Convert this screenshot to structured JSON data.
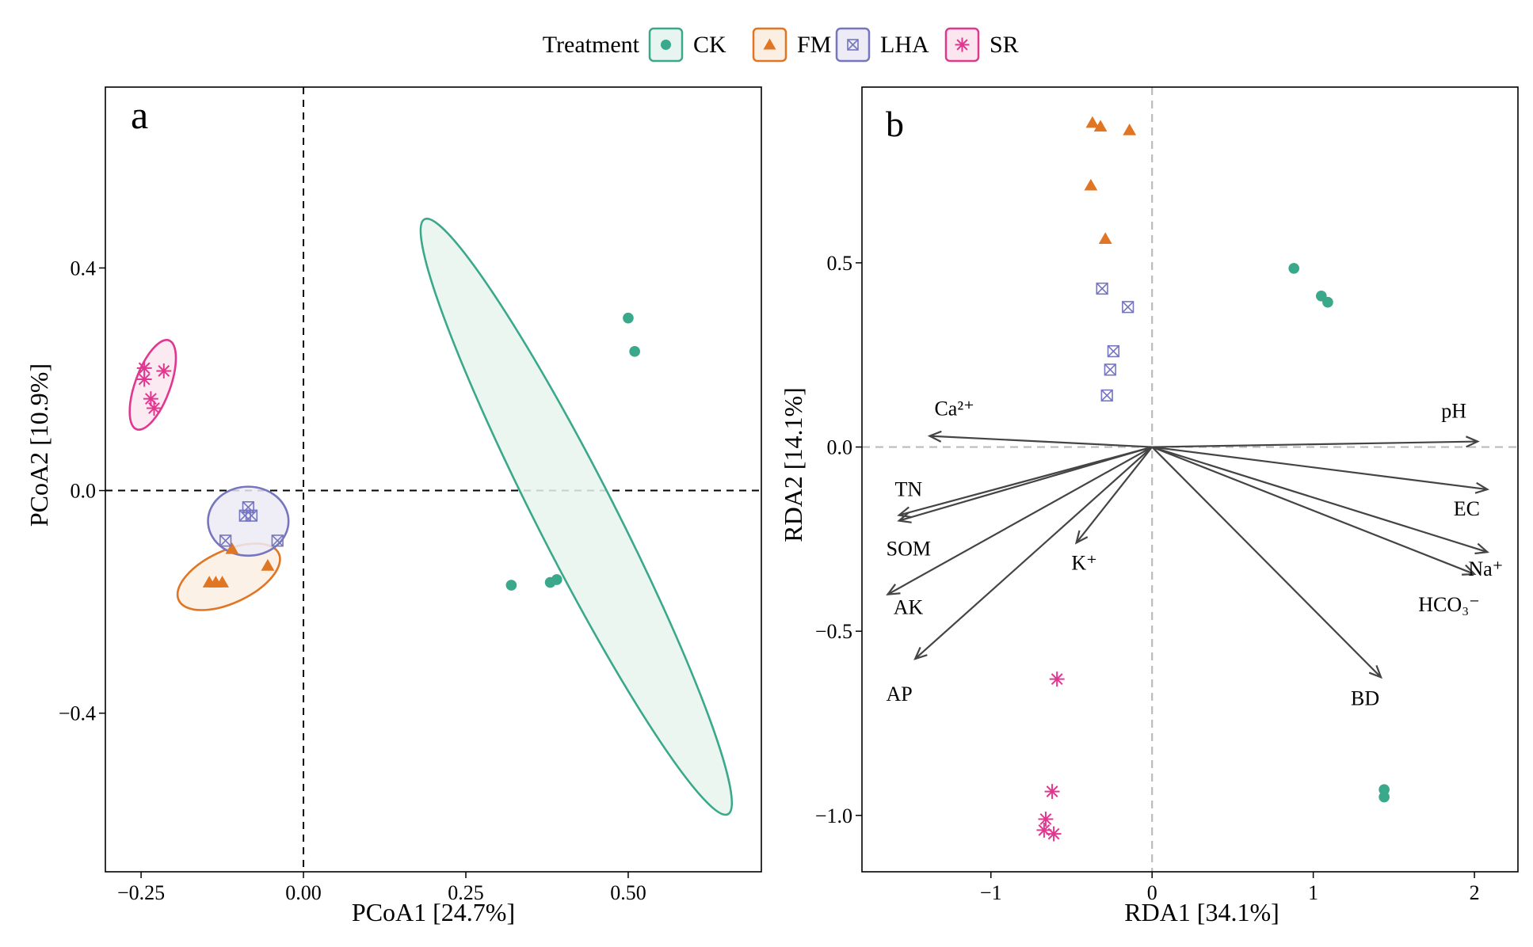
{
  "legend": {
    "title": "Treatment",
    "items": [
      {
        "key": "CK",
        "label": "CK",
        "color": "#3aa88a",
        "fill": "#e7f4ef",
        "shape": "circle"
      },
      {
        "key": "FM",
        "label": "FM",
        "color": "#e07524",
        "fill": "#fbeee2",
        "shape": "triangle"
      },
      {
        "key": "LHA",
        "label": "LHA",
        "color": "#7676bf",
        "fill": "#ecebf6",
        "shape": "boxed-x"
      },
      {
        "key": "SR",
        "label": "SR",
        "color": "#e0378f",
        "fill": "#fbe6f0",
        "shape": "asterisk"
      }
    ]
  },
  "chart_data": [
    {
      "panel": "a",
      "type": "scatter",
      "xlabel": "PCoA1 [24.7%]",
      "ylabel": "PCoA2 [10.9%]",
      "xlim": [
        -0.305,
        0.705
      ],
      "ylim": [
        -0.685,
        0.725
      ],
      "xticks": [
        {
          "v": -0.25,
          "label": "−0.25"
        },
        {
          "v": 0.0,
          "label": "0.00"
        },
        {
          "v": 0.25,
          "label": "0.25"
        },
        {
          "v": 0.5,
          "label": "0.50"
        }
      ],
      "yticks": [
        {
          "v": 0.4,
          "label": "0.4"
        },
        {
          "v": 0.0,
          "label": "0.0"
        },
        {
          "v": -0.4,
          "label": "−0.4"
        }
      ],
      "reference_lines": {
        "x": 0,
        "y": 0,
        "style": "dashed black"
      },
      "series": [
        {
          "name": "CK",
          "points": [
            [
              0.5,
              0.31
            ],
            [
              0.51,
              0.25
            ],
            [
              0.32,
              -0.17
            ],
            [
              0.38,
              -0.165
            ],
            [
              0.39,
              -0.16
            ]
          ]
        },
        {
          "name": "FM",
          "points": [
            [
              -0.145,
              -0.165
            ],
            [
              -0.135,
              -0.165
            ],
            [
              -0.125,
              -0.165
            ],
            [
              -0.11,
              -0.105
            ],
            [
              -0.055,
              -0.135
            ]
          ]
        },
        {
          "name": "LHA",
          "points": [
            [
              -0.12,
              -0.09
            ],
            [
              -0.09,
              -0.045
            ],
            [
              -0.085,
              -0.03
            ],
            [
              -0.08,
              -0.045
            ],
            [
              -0.04,
              -0.09
            ]
          ]
        },
        {
          "name": "SR",
          "points": [
            [
              -0.245,
              0.22
            ],
            [
              -0.245,
              0.2
            ],
            [
              -0.215,
              0.215
            ],
            [
              -0.235,
              0.165
            ],
            [
              -0.23,
              0.148
            ]
          ]
        }
      ],
      "ellipses": [
        {
          "group": "CK",
          "center": [
            0.42,
            -0.047
          ],
          "semi_axes": [
            0.06,
            0.6
          ],
          "rotation_deg": -27
        },
        {
          "group": "FM",
          "center": [
            -0.115,
            -0.155
          ],
          "semi_axes": [
            0.085,
            0.047
          ],
          "rotation_deg": -25
        },
        {
          "group": "LHA",
          "center": [
            -0.085,
            -0.055
          ],
          "semi_axes": [
            0.062,
            0.062
          ],
          "rotation_deg": 0
        },
        {
          "group": "SR",
          "center": [
            -0.232,
            0.19
          ],
          "semi_axes": [
            0.027,
            0.085
          ],
          "rotation_deg": 20
        }
      ]
    },
    {
      "panel": "b",
      "type": "scatter",
      "xlabel": "RDA1 [34.1%]",
      "ylabel": "RDA2 [14.1%]",
      "xlim": [
        -1.8,
        2.27
      ],
      "ylim": [
        -1.153,
        0.977
      ],
      "xticks": [
        {
          "v": -1,
          "label": "−1"
        },
        {
          "v": 0,
          "label": "0"
        },
        {
          "v": 1,
          "label": "1"
        },
        {
          "v": 2,
          "label": "2"
        }
      ],
      "yticks": [
        {
          "v": 0.5,
          "label": "0.5"
        },
        {
          "v": 0.0,
          "label": "0.0"
        },
        {
          "v": -0.5,
          "label": "−0.5"
        },
        {
          "v": -1.0,
          "label": "−1.0"
        }
      ],
      "reference_lines": {
        "x": 0,
        "y": 0,
        "style": "dashed grey"
      },
      "series": [
        {
          "name": "CK",
          "points": [
            [
              0.88,
              0.485
            ],
            [
              1.05,
              0.41
            ],
            [
              1.09,
              0.393
            ],
            [
              1.44,
              -0.93
            ],
            [
              1.44,
              -0.95
            ]
          ]
        },
        {
          "name": "FM",
          "points": [
            [
              -0.37,
              0.88
            ],
            [
              -0.32,
              0.87
            ],
            [
              -0.14,
              0.86
            ],
            [
              -0.38,
              0.71
            ],
            [
              -0.29,
              0.565
            ]
          ]
        },
        {
          "name": "LHA",
          "points": [
            [
              -0.31,
              0.43
            ],
            [
              -0.15,
              0.38
            ],
            [
              -0.24,
              0.26
            ],
            [
              -0.26,
              0.21
            ],
            [
              -0.28,
              0.14
            ]
          ]
        },
        {
          "name": "SR",
          "points": [
            [
              -0.59,
              -0.63
            ],
            [
              -0.62,
              -0.935
            ],
            [
              -0.66,
              -1.01
            ],
            [
              -0.67,
              -1.04
            ],
            [
              -0.61,
              -1.05
            ]
          ]
        }
      ],
      "arrows": [
        {
          "name": "Ca2+",
          "label": "Ca²⁺",
          "end": [
            -1.38,
            0.03
          ]
        },
        {
          "name": "pH",
          "label": "pH",
          "end": [
            2.02,
            0.015
          ]
        },
        {
          "name": "TN",
          "label": "TN",
          "end": [
            -1.57,
            -0.185
          ]
        },
        {
          "name": "SOM",
          "label": "SOM",
          "end": [
            -1.57,
            -0.2
          ]
        },
        {
          "name": "AK",
          "label": "AK",
          "end": [
            -1.64,
            -0.4
          ]
        },
        {
          "name": "AP",
          "label": "AP",
          "end": [
            -1.47,
            -0.575
          ]
        },
        {
          "name": "K+",
          "label": "K⁺",
          "end": [
            -0.47,
            -0.26
          ]
        },
        {
          "name": "EC",
          "label": "EC",
          "end": [
            2.08,
            -0.115
          ]
        },
        {
          "name": "Na+",
          "label": "Na⁺",
          "end": [
            2.08,
            -0.285
          ]
        },
        {
          "name": "HCO3-",
          "label": "HCO₃⁻",
          "end": [
            2.0,
            -0.345
          ]
        },
        {
          "name": "BD",
          "label": "BD",
          "end": [
            1.42,
            -0.625
          ]
        }
      ]
    }
  ]
}
